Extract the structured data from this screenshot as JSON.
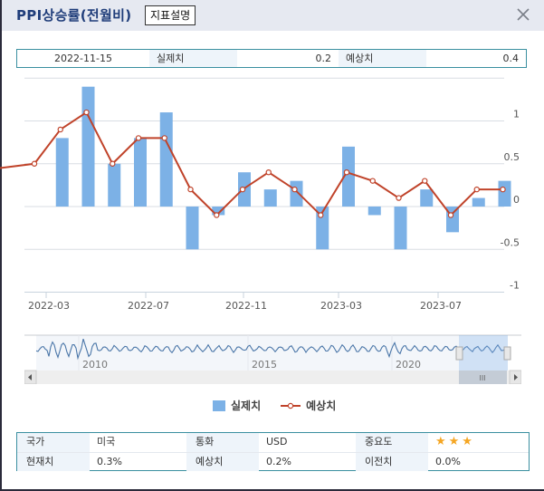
{
  "window": {
    "title": "PPI상승률(전월비)",
    "description_button": "지표설명",
    "close_icon": "close-icon"
  },
  "info_strip": {
    "date": "2022-11-15",
    "actual_label": "실제치",
    "actual_value": "0.2",
    "forecast_label": "예상치",
    "forecast_value": "0.4"
  },
  "legend": {
    "actual": "실제치",
    "forecast": "예상치"
  },
  "navigator": {
    "labels": [
      "2010",
      "2015",
      "2020"
    ]
  },
  "details": {
    "rows": [
      [
        {
          "label": "국가",
          "value": "미국"
        },
        {
          "label": "통화",
          "value": "USD"
        },
        {
          "label": "중요도",
          "value": "★★★"
        }
      ],
      [
        {
          "label": "현재치",
          "value": "0.3%"
        },
        {
          "label": "예상치",
          "value": "0.2%"
        },
        {
          "label": "이전치",
          "value": "0.0%"
        }
      ]
    ]
  },
  "colors": {
    "bar": "#7cb1e6",
    "line": "#c0432a",
    "grid": "#d9dde3",
    "title": "#1f3d7a",
    "border": "#3a8fa0",
    "star": "#f5a623"
  },
  "chart_data": {
    "type": "bar",
    "title": "PPI상승률(전월비)",
    "xlabel": "",
    "ylabel": "",
    "ylim": [
      -1,
      1.5
    ],
    "yticks": [
      -1,
      -0.5,
      0,
      0.5,
      1
    ],
    "xticks": [
      "2022-03",
      "2022-07",
      "2022-11",
      "2023-03",
      "2023-07"
    ],
    "grid": true,
    "legend_position": "bottom",
    "categories": [
      "2022-02",
      "2022-03",
      "2022-04",
      "2022-05",
      "2022-06",
      "2022-07",
      "2022-08",
      "2022-09",
      "2022-10",
      "2022-11",
      "2022-12",
      "2023-01",
      "2023-02",
      "2023-03",
      "2023-04",
      "2023-05",
      "2023-06",
      "2023-07",
      "2023-08"
    ],
    "series": [
      {
        "name": "실제치",
        "type": "bar",
        "values": [
          null,
          0.8,
          1.4,
          0.5,
          0.8,
          1.1,
          -0.5,
          -0.1,
          0.4,
          0.2,
          0.3,
          -0.5,
          0.7,
          -0.1,
          -0.5,
          0.2,
          -0.3,
          0.1,
          0.3
        ]
      },
      {
        "name": "예상치",
        "type": "line",
        "values": [
          0.5,
          0.9,
          1.1,
          0.5,
          0.8,
          0.8,
          0.2,
          -0.1,
          0.2,
          0.4,
          0.2,
          -0.1,
          0.4,
          0.3,
          0.1,
          0.3,
          -0.1,
          0.2,
          0.2
        ]
      }
    ]
  }
}
